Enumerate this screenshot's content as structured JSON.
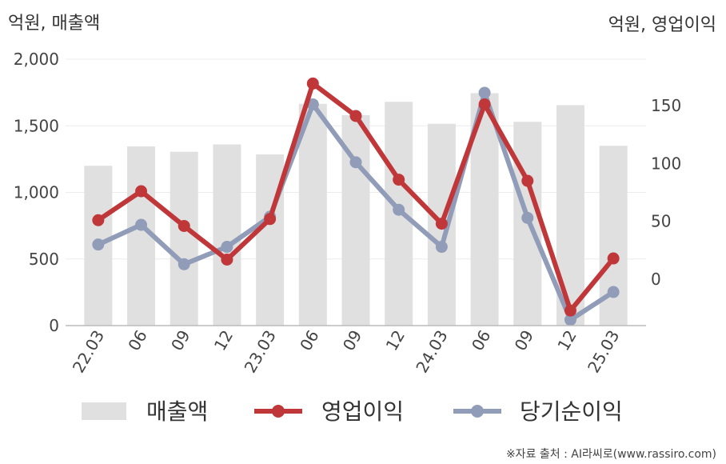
{
  "chart_data": {
    "type": "bar",
    "categories": [
      "22.03",
      "06",
      "09",
      "12",
      "23.03",
      "06",
      "09",
      "12",
      "24.03",
      "06",
      "09",
      "12",
      "25.03"
    ],
    "left_axis_title": "억원, 매출액",
    "right_axis_title": "억원, 영업이익",
    "left_ylim": [
      0,
      2000
    ],
    "left_ticks": [
      "0",
      "500",
      "1,000",
      "1,500",
      "2,000"
    ],
    "right_ylim": [
      -40,
      190
    ],
    "right_ticks": [
      "0",
      "50",
      "100",
      "150"
    ],
    "grid": true,
    "legend_position": "bottom",
    "series": [
      {
        "name": "매출액",
        "kind": "bar",
        "axis": "left",
        "color": "#e0e0e0",
        "values": [
          1200,
          1345,
          1305,
          1360,
          1285,
          1665,
          1580,
          1680,
          1515,
          1745,
          1530,
          1655,
          1350
        ]
      },
      {
        "name": "영업이익",
        "kind": "line",
        "axis": "right",
        "color": "#c0373a",
        "values": [
          51,
          76,
          46,
          17,
          52,
          169,
          141,
          86,
          48,
          151,
          85,
          -27,
          18
        ]
      },
      {
        "name": "당기순이익",
        "kind": "line",
        "axis": "right",
        "color": "#919db8",
        "values": [
          30,
          47,
          13,
          28,
          54,
          151,
          101,
          60,
          28,
          161,
          53,
          -35,
          -11
        ]
      }
    ],
    "source": "※자료 출처 : AI라씨로(www.rassiro.com)"
  }
}
